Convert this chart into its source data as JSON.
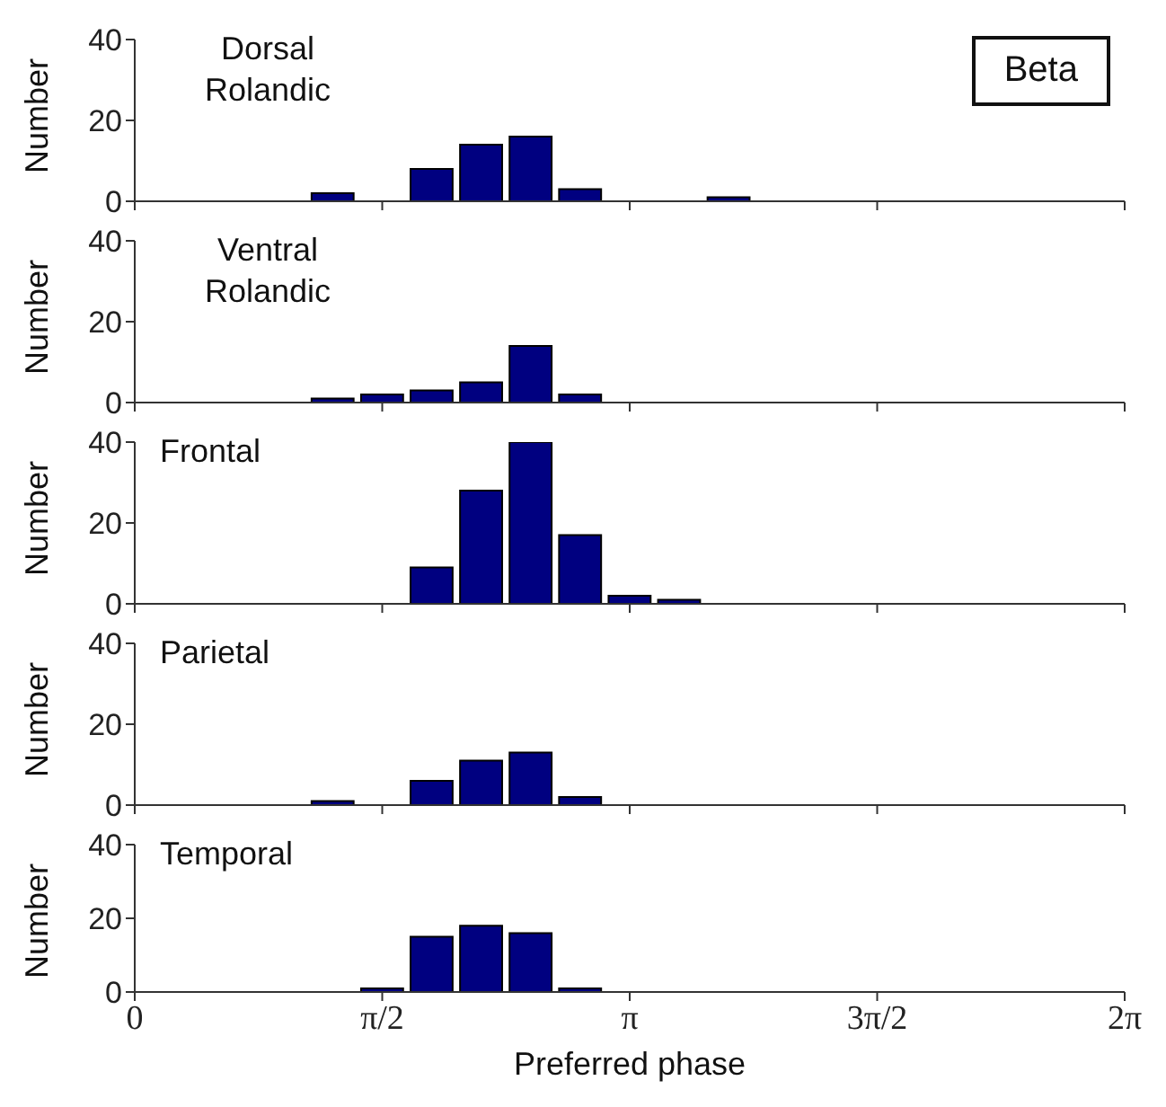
{
  "chart_data": [
    {
      "type": "histogram",
      "title": "Dorsal Rolandic",
      "ylabel": "Number",
      "annotations": [
        "Beta"
      ],
      "bins": [
        1.0996,
        1.4137,
        1.7279,
        2.042,
        2.3562,
        2.6704,
        2.9845,
        3.2987,
        3.6128,
        3.927
      ],
      "values": [
        2,
        0,
        8,
        14,
        16,
        3,
        0,
        0,
        1
      ],
      "color": "#000080",
      "xlim": [
        0,
        6.2832
      ],
      "xticks": [
        {
          "value": 0,
          "label": null
        },
        {
          "value": 1.5708,
          "label": null
        },
        {
          "value": 3.1416,
          "label": null
        },
        {
          "value": 4.7124,
          "label": null
        },
        {
          "value": 6.2832,
          "label": null
        }
      ],
      "ylim": [
        0,
        40
      ],
      "yticks": [
        0,
        20,
        40
      ],
      "tick_labels": "y",
      "grid": false,
      "legend": false
    },
    {
      "type": "histogram",
      "title": "Ventral Rolandic",
      "ylabel": "Number",
      "bins": [
        1.0996,
        1.4137,
        1.7279,
        2.042,
        2.3562,
        2.6704,
        2.9845,
        3.2987,
        3.6128,
        3.927
      ],
      "values": [
        1,
        2,
        3,
        5,
        14,
        2,
        0,
        0,
        0
      ],
      "color": "#000080",
      "xlim": [
        0,
        6.2832
      ],
      "xticks": [
        {
          "value": 0,
          "label": null
        },
        {
          "value": 1.5708,
          "label": null
        },
        {
          "value": 3.1416,
          "label": null
        },
        {
          "value": 4.7124,
          "label": null
        },
        {
          "value": 6.2832,
          "label": null
        }
      ],
      "ylim": [
        0,
        40
      ],
      "yticks": [
        0,
        20,
        40
      ],
      "tick_labels": "y",
      "grid": false,
      "legend": false
    },
    {
      "type": "histogram",
      "title": "Frontal",
      "ylabel": "Number",
      "bins": [
        1.0996,
        1.4137,
        1.7279,
        2.042,
        2.3562,
        2.6704,
        2.9845,
        3.2987,
        3.6128,
        3.927
      ],
      "values": [
        0,
        0,
        9,
        28,
        40,
        17,
        2,
        1,
        0
      ],
      "color": "#000080",
      "xlim": [
        0,
        6.2832
      ],
      "xticks": [
        {
          "value": 0,
          "label": null
        },
        {
          "value": 1.5708,
          "label": null
        },
        {
          "value": 3.1416,
          "label": null
        },
        {
          "value": 4.7124,
          "label": null
        },
        {
          "value": 6.2832,
          "label": null
        }
      ],
      "ylim": [
        0,
        40
      ],
      "yticks": [
        0,
        20,
        40
      ],
      "tick_labels": "y",
      "grid": false,
      "legend": false
    },
    {
      "type": "histogram",
      "title": "Parietal",
      "ylabel": "Number",
      "bins": [
        1.0996,
        1.4137,
        1.7279,
        2.042,
        2.3562,
        2.6704,
        2.9845,
        3.2987,
        3.6128,
        3.927
      ],
      "values": [
        1,
        0,
        6,
        11,
        13,
        2,
        0,
        0,
        0
      ],
      "color": "#000080",
      "xlim": [
        0,
        6.2832
      ],
      "xticks": [
        {
          "value": 0,
          "label": null
        },
        {
          "value": 1.5708,
          "label": null
        },
        {
          "value": 3.1416,
          "label": null
        },
        {
          "value": 4.7124,
          "label": null
        },
        {
          "value": 6.2832,
          "label": null
        }
      ],
      "ylim": [
        0,
        40
      ],
      "yticks": [
        0,
        20,
        40
      ],
      "tick_labels": "y",
      "grid": false,
      "legend": false
    },
    {
      "type": "histogram",
      "title": "Temporal",
      "ylabel": "Number",
      "xlabel": "Preferred phase",
      "bins": [
        1.0996,
        1.4137,
        1.7279,
        2.042,
        2.3562,
        2.6704,
        2.9845,
        3.2987,
        3.6128,
        3.927
      ],
      "values": [
        0,
        1,
        15,
        18,
        16,
        1,
        0,
        0,
        0
      ],
      "color": "#000080",
      "xlim": [
        0,
        6.2832
      ],
      "xticks": [
        {
          "value": 0,
          "label": "0"
        },
        {
          "value": 1.5708,
          "label": "π/2"
        },
        {
          "value": 3.1416,
          "label": "π"
        },
        {
          "value": 4.7124,
          "label": "3π/2"
        },
        {
          "value": 6.2832,
          "label": "2π"
        }
      ],
      "ylim": [
        0,
        40
      ],
      "yticks": [
        0,
        20,
        40
      ],
      "grid": false,
      "legend": false
    }
  ]
}
